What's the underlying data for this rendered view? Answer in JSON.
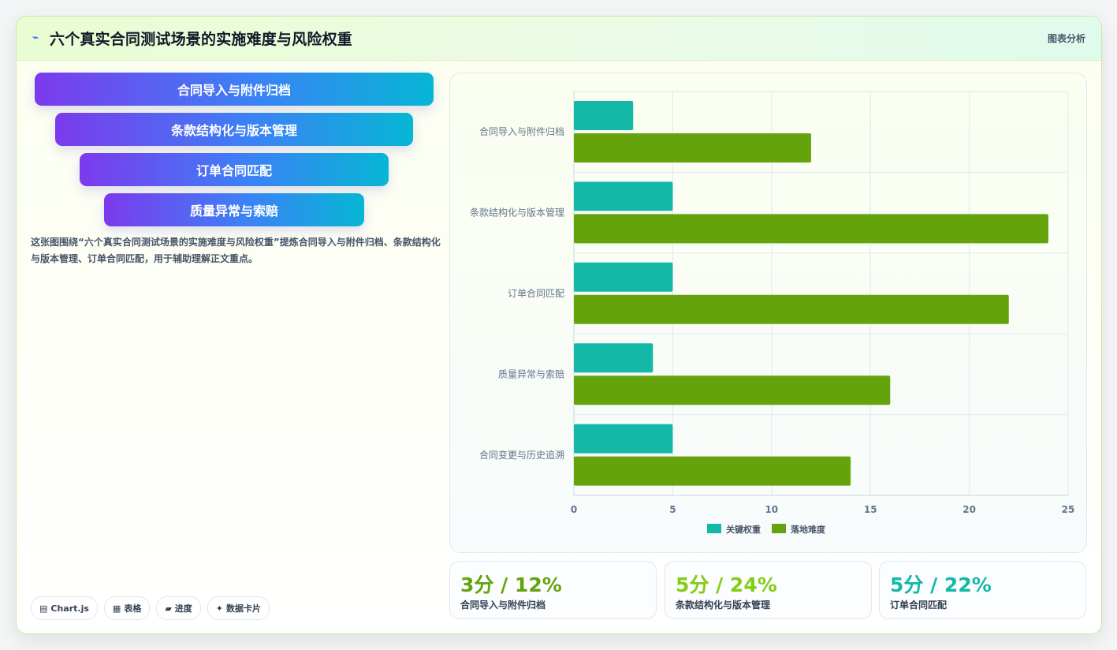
{
  "header": {
    "title": "六个真实合同测试场景的实施难度与风险权重",
    "tag": "图表分析",
    "bolt_icon": "bolt-icon"
  },
  "funnel": {
    "items": [
      {
        "label": "合同导入与附件归档"
      },
      {
        "label": "条款结构化与版本管理"
      },
      {
        "label": "订单合同匹配"
      },
      {
        "label": "质量异常与索赔"
      }
    ]
  },
  "description": "这张图围绕“六个真实合同测试场景的实施难度与风险权重”提炼合同导入与附件归档、条款结构化与版本管理、订单合同匹配，用于辅助理解正文重点。",
  "chips": [
    {
      "icon": "▤",
      "label": "Chart.js"
    },
    {
      "icon": "▦",
      "label": "表格"
    },
    {
      "icon": "▰",
      "label": "进度"
    },
    {
      "icon": "✦",
      "label": "数据卡片"
    }
  ],
  "chart_data": {
    "type": "bar",
    "orientation": "horizontal",
    "categories": [
      "合同导入与附件归档",
      "条款结构化与版本管理",
      "订单合同匹配",
      "质量异常与索赔",
      "合同变更与历史追溯"
    ],
    "series": [
      {
        "name": "关键权重",
        "values": [
          3,
          5,
          5,
          4,
          5
        ],
        "color": "#14b8a6"
      },
      {
        "name": "落地难度",
        "values": [
          12,
          24,
          22,
          16,
          14
        ],
        "color": "#65a30d"
      }
    ],
    "xlim": [
      0,
      25
    ],
    "x_ticks": [
      "0",
      "5",
      "10",
      "15",
      "20",
      "25"
    ],
    "grid": true,
    "legend": "bottom"
  },
  "stats": [
    {
      "value": "3分 / 12%",
      "label": "合同导入与附件归档",
      "color": "#65a30d"
    },
    {
      "value": "5分 / 24%",
      "label": "条款结构化与版本管理",
      "color": "#84cc16"
    },
    {
      "value": "5分 / 22%",
      "label": "订单合同匹配",
      "color": "#14b8a6"
    }
  ]
}
